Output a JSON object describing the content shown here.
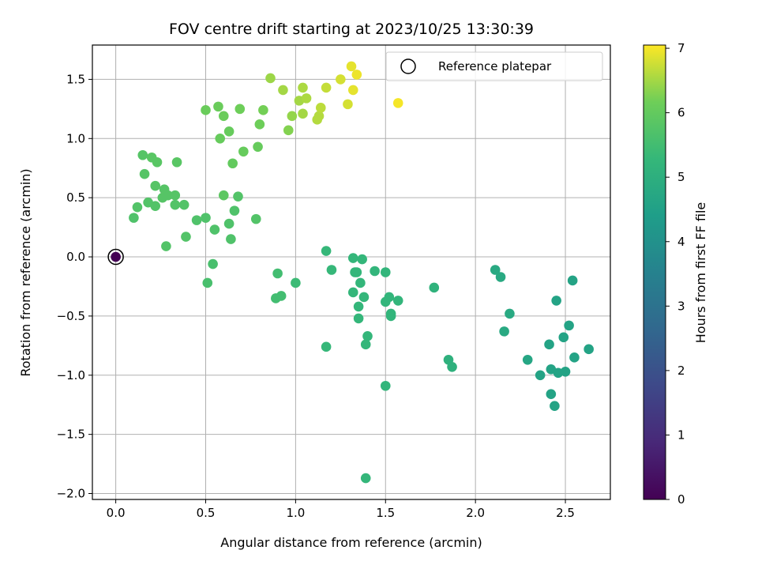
{
  "chart_data": {
    "type": "scatter",
    "title": "FOV centre drift starting at 2023/10/25 13:30:39",
    "xlabel": "Angular distance from reference (arcmin)",
    "ylabel": "Rotation from reference (arcmin)",
    "xlim": [
      -0.13,
      2.75
    ],
    "ylim": [
      -2.05,
      1.79
    ],
    "xticks": [
      0.0,
      0.5,
      1.0,
      1.5,
      2.0,
      2.5
    ],
    "xtick_labels": [
      "0.0",
      "0.5",
      "1.0",
      "1.5",
      "2.0",
      "2.5"
    ],
    "yticks": [
      -2.0,
      -1.5,
      -1.0,
      -0.5,
      0.0,
      0.5,
      1.0,
      1.5
    ],
    "ytick_labels": [
      "−2.0",
      "−1.5",
      "−1.0",
      "−0.5",
      "0.0",
      "0.5",
      "1.0",
      "1.5"
    ],
    "grid": true,
    "colormap": "viridis",
    "colorbar": {
      "label": "Hours from first FF file",
      "min": 0,
      "max": 7.05,
      "ticks": [
        0,
        1,
        2,
        3,
        4,
        5,
        6,
        7
      ],
      "tick_labels": [
        "0",
        "1",
        "2",
        "3",
        "4",
        "5",
        "6",
        "7"
      ]
    },
    "legend": {
      "position": "top-right",
      "entries": [
        {
          "label": "Reference platepar",
          "marker": "open-circle"
        }
      ]
    },
    "reference_point": {
      "x": 0.0,
      "y": 0.0,
      "c": 0.0
    },
    "points": [
      {
        "x": 0.0,
        "y": 0.0,
        "c": 0.0
      },
      {
        "x": 0.1,
        "y": 0.33,
        "c": 5.7
      },
      {
        "x": 0.12,
        "y": 0.42,
        "c": 5.75
      },
      {
        "x": 0.15,
        "y": 0.86,
        "c": 5.8
      },
      {
        "x": 0.16,
        "y": 0.7,
        "c": 5.8
      },
      {
        "x": 0.18,
        "y": 0.46,
        "c": 5.75
      },
      {
        "x": 0.2,
        "y": 0.84,
        "c": 5.85
      },
      {
        "x": 0.22,
        "y": 0.6,
        "c": 5.8
      },
      {
        "x": 0.22,
        "y": 0.43,
        "c": 5.75
      },
      {
        "x": 0.23,
        "y": 0.8,
        "c": 5.85
      },
      {
        "x": 0.26,
        "y": 0.5,
        "c": 5.8
      },
      {
        "x": 0.27,
        "y": 0.57,
        "c": 5.8
      },
      {
        "x": 0.28,
        "y": 0.09,
        "c": 5.75
      },
      {
        "x": 0.29,
        "y": 0.52,
        "c": 5.8
      },
      {
        "x": 0.33,
        "y": 0.52,
        "c": 5.8
      },
      {
        "x": 0.33,
        "y": 0.44,
        "c": 5.75
      },
      {
        "x": 0.34,
        "y": 0.8,
        "c": 5.85
      },
      {
        "x": 0.38,
        "y": 0.44,
        "c": 5.75
      },
      {
        "x": 0.39,
        "y": 0.17,
        "c": 5.75
      },
      {
        "x": 0.45,
        "y": 0.31,
        "c": 5.7
      },
      {
        "x": 0.5,
        "y": 1.24,
        "c": 6.1
      },
      {
        "x": 0.5,
        "y": 0.33,
        "c": 5.7
      },
      {
        "x": 0.51,
        "y": -0.22,
        "c": 5.6
      },
      {
        "x": 0.54,
        "y": -0.06,
        "c": 5.6
      },
      {
        "x": 0.55,
        "y": 0.23,
        "c": 5.7
      },
      {
        "x": 0.57,
        "y": 1.27,
        "c": 6.1
      },
      {
        "x": 0.58,
        "y": 1.0,
        "c": 6.05
      },
      {
        "x": 0.6,
        "y": 0.52,
        "c": 5.9
      },
      {
        "x": 0.6,
        "y": 1.19,
        "c": 6.1
      },
      {
        "x": 0.63,
        "y": 1.06,
        "c": 6.05
      },
      {
        "x": 0.63,
        "y": 0.28,
        "c": 5.7
      },
      {
        "x": 0.64,
        "y": 0.15,
        "c": 5.7
      },
      {
        "x": 0.65,
        "y": 0.79,
        "c": 6.0
      },
      {
        "x": 0.66,
        "y": 0.39,
        "c": 5.7
      },
      {
        "x": 0.68,
        "y": 0.51,
        "c": 5.75
      },
      {
        "x": 0.69,
        "y": 1.25,
        "c": 6.15
      },
      {
        "x": 0.71,
        "y": 0.89,
        "c": 6.05
      },
      {
        "x": 0.78,
        "y": 0.32,
        "c": 5.75
      },
      {
        "x": 0.79,
        "y": 0.93,
        "c": 6.05
      },
      {
        "x": 0.8,
        "y": 1.12,
        "c": 6.15
      },
      {
        "x": 0.82,
        "y": 1.24,
        "c": 6.2
      },
      {
        "x": 0.86,
        "y": 1.51,
        "c": 6.45
      },
      {
        "x": 0.89,
        "y": -0.35,
        "c": 5.5
      },
      {
        "x": 0.9,
        "y": -0.14,
        "c": 5.5
      },
      {
        "x": 0.92,
        "y": -0.33,
        "c": 5.5
      },
      {
        "x": 0.93,
        "y": 1.41,
        "c": 6.5
      },
      {
        "x": 0.96,
        "y": 1.07,
        "c": 6.3
      },
      {
        "x": 0.98,
        "y": 1.19,
        "c": 6.4
      },
      {
        "x": 1.0,
        "y": -0.22,
        "c": 5.4
      },
      {
        "x": 1.02,
        "y": 1.32,
        "c": 6.5
      },
      {
        "x": 1.04,
        "y": 1.43,
        "c": 6.55
      },
      {
        "x": 1.04,
        "y": 1.21,
        "c": 6.5
      },
      {
        "x": 1.06,
        "y": 1.34,
        "c": 6.55
      },
      {
        "x": 1.12,
        "y": 1.16,
        "c": 6.6
      },
      {
        "x": 1.13,
        "y": 1.19,
        "c": 6.6
      },
      {
        "x": 1.14,
        "y": 1.26,
        "c": 6.65
      },
      {
        "x": 1.17,
        "y": 1.43,
        "c": 6.7
      },
      {
        "x": 1.17,
        "y": 0.05,
        "c": 5.3
      },
      {
        "x": 1.17,
        "y": -0.76,
        "c": 5.3
      },
      {
        "x": 1.2,
        "y": -0.11,
        "c": 5.3
      },
      {
        "x": 1.25,
        "y": 1.5,
        "c": 6.8
      },
      {
        "x": 1.29,
        "y": 1.29,
        "c": 6.8
      },
      {
        "x": 1.31,
        "y": 1.61,
        "c": 6.9
      },
      {
        "x": 1.32,
        "y": 1.41,
        "c": 6.9
      },
      {
        "x": 1.32,
        "y": -0.01,
        "c": 5.25
      },
      {
        "x": 1.32,
        "y": -0.3,
        "c": 5.25
      },
      {
        "x": 1.33,
        "y": -0.13,
        "c": 5.25
      },
      {
        "x": 1.34,
        "y": -0.13,
        "c": 5.25
      },
      {
        "x": 1.34,
        "y": 1.54,
        "c": 6.95
      },
      {
        "x": 1.35,
        "y": -0.42,
        "c": 5.25
      },
      {
        "x": 1.35,
        "y": -0.52,
        "c": 5.25
      },
      {
        "x": 1.36,
        "y": -0.22,
        "c": 5.25
      },
      {
        "x": 1.37,
        "y": -0.02,
        "c": 5.25
      },
      {
        "x": 1.38,
        "y": -0.34,
        "c": 5.25
      },
      {
        "x": 1.39,
        "y": -0.74,
        "c": 5.25
      },
      {
        "x": 1.39,
        "y": -1.87,
        "c": 5.25
      },
      {
        "x": 1.4,
        "y": -0.67,
        "c": 5.25
      },
      {
        "x": 1.44,
        "y": -0.12,
        "c": 5.2
      },
      {
        "x": 1.5,
        "y": -0.13,
        "c": 5.2
      },
      {
        "x": 1.5,
        "y": -0.38,
        "c": 5.2
      },
      {
        "x": 1.5,
        "y": -1.09,
        "c": 5.2
      },
      {
        "x": 1.52,
        "y": -0.34,
        "c": 5.2
      },
      {
        "x": 1.53,
        "y": -0.48,
        "c": 5.2
      },
      {
        "x": 1.53,
        "y": -0.5,
        "c": 5.2
      },
      {
        "x": 1.57,
        "y": 1.3,
        "c": 7.0
      },
      {
        "x": 1.57,
        "y": -0.37,
        "c": 5.2
      },
      {
        "x": 1.77,
        "y": -0.26,
        "c": 5.1
      },
      {
        "x": 1.85,
        "y": -0.87,
        "c": 5.05
      },
      {
        "x": 1.87,
        "y": -0.93,
        "c": 5.05
      },
      {
        "x": 2.11,
        "y": -0.11,
        "c": 4.8
      },
      {
        "x": 2.14,
        "y": -0.17,
        "c": 4.8
      },
      {
        "x": 2.16,
        "y": -0.63,
        "c": 4.8
      },
      {
        "x": 2.19,
        "y": -0.48,
        "c": 4.8
      },
      {
        "x": 2.29,
        "y": -0.87,
        "c": 4.7
      },
      {
        "x": 2.36,
        "y": -1.0,
        "c": 4.6
      },
      {
        "x": 2.41,
        "y": -0.74,
        "c": 4.6
      },
      {
        "x": 2.42,
        "y": -0.95,
        "c": 4.6
      },
      {
        "x": 2.42,
        "y": -1.16,
        "c": 4.6
      },
      {
        "x": 2.44,
        "y": -1.26,
        "c": 4.6
      },
      {
        "x": 2.45,
        "y": -0.37,
        "c": 4.6
      },
      {
        "x": 2.46,
        "y": -0.98,
        "c": 4.6
      },
      {
        "x": 2.49,
        "y": -0.68,
        "c": 4.6
      },
      {
        "x": 2.5,
        "y": -0.97,
        "c": 4.6
      },
      {
        "x": 2.52,
        "y": -0.58,
        "c": 4.6
      },
      {
        "x": 2.54,
        "y": -0.2,
        "c": 4.6
      },
      {
        "x": 2.55,
        "y": -0.85,
        "c": 4.6
      },
      {
        "x": 2.63,
        "y": -0.78,
        "c": 4.6
      }
    ]
  }
}
